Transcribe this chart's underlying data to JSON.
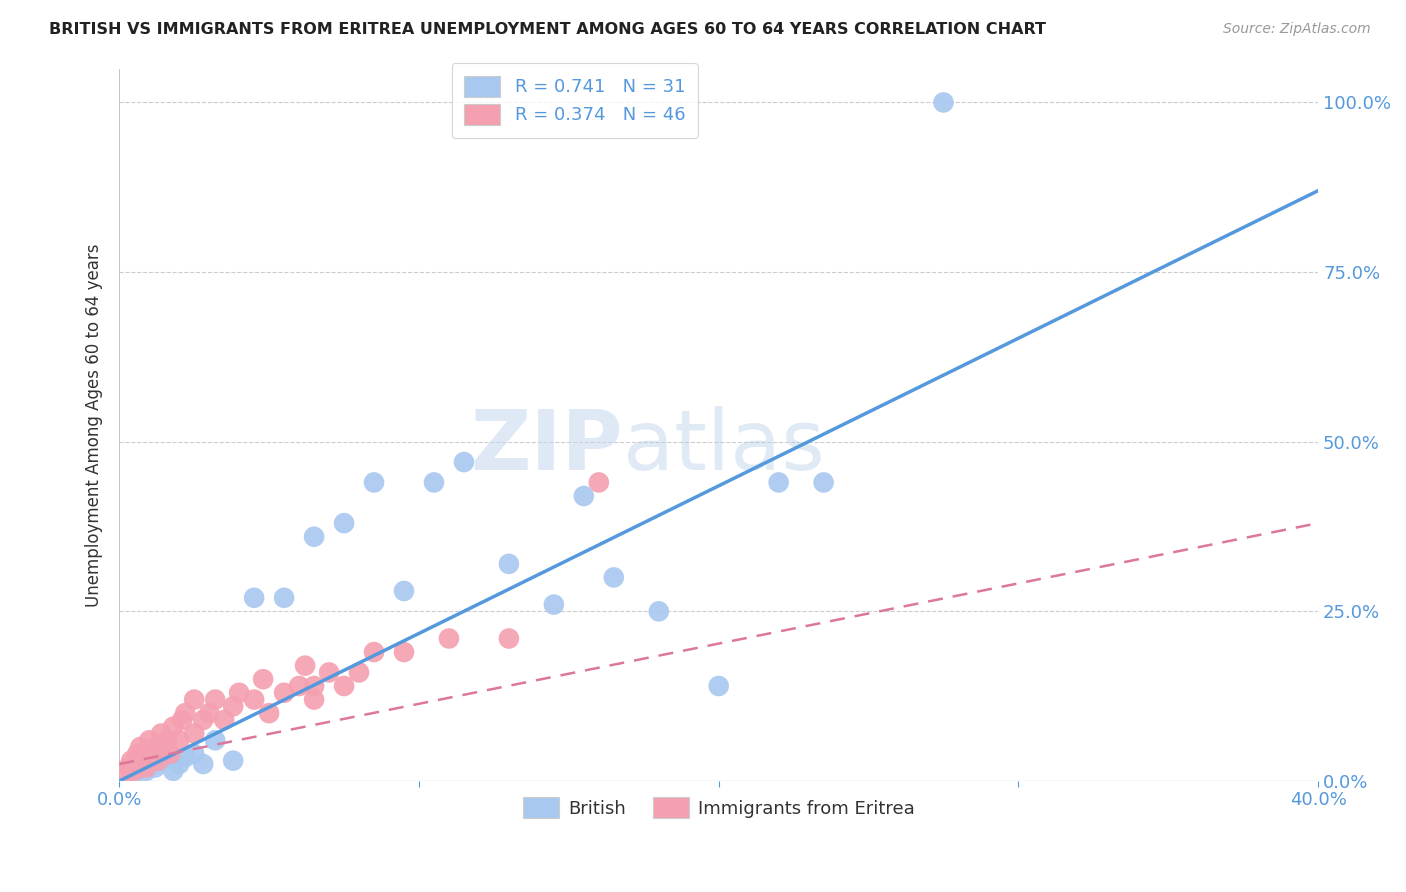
{
  "title": "BRITISH VS IMMIGRANTS FROM ERITREA UNEMPLOYMENT AMONG AGES 60 TO 64 YEARS CORRELATION CHART",
  "source": "Source: ZipAtlas.com",
  "ylabel": "Unemployment Among Ages 60 to 64 years",
  "xlim": [
    0.0,
    0.4
  ],
  "ylim": [
    0.0,
    1.05
  ],
  "x_ticks": [
    0.0,
    0.1,
    0.2,
    0.3,
    0.4
  ],
  "x_tick_labels": [
    "0.0%",
    "",
    "",
    "",
    "40.0%"
  ],
  "y_tick_labels_right": [
    "0.0%",
    "25.0%",
    "50.0%",
    "75.0%",
    "100.0%"
  ],
  "y_ticks_right": [
    0.0,
    0.25,
    0.5,
    0.75,
    1.0
  ],
  "watermark_zip": "ZIP",
  "watermark_atlas": "atlas",
  "british_color": "#a8c8f0",
  "eritrea_color": "#f4a0b0",
  "british_line_color": "#5599dd",
  "eritrea_line_color": "#dd7799",
  "title_color": "#222222",
  "axis_label_color": "#5599dd",
  "british_scatter_x": [
    0.005,
    0.007,
    0.009,
    0.01,
    0.012,
    0.014,
    0.016,
    0.018,
    0.02,
    0.022,
    0.025,
    0.028,
    0.032,
    0.038,
    0.045,
    0.055,
    0.065,
    0.075,
    0.085,
    0.095,
    0.105,
    0.115,
    0.13,
    0.145,
    0.155,
    0.165,
    0.18,
    0.2,
    0.22,
    0.235,
    0.275
  ],
  "british_scatter_y": [
    0.01,
    0.02,
    0.015,
    0.025,
    0.02,
    0.03,
    0.04,
    0.015,
    0.025,
    0.035,
    0.04,
    0.025,
    0.06,
    0.03,
    0.27,
    0.27,
    0.36,
    0.38,
    0.44,
    0.28,
    0.44,
    0.47,
    0.32,
    0.26,
    0.42,
    0.3,
    0.25,
    0.14,
    0.44,
    0.44,
    1.0
  ],
  "eritrea_scatter_x": [
    0.002,
    0.003,
    0.004,
    0.005,
    0.006,
    0.006,
    0.007,
    0.007,
    0.008,
    0.009,
    0.01,
    0.011,
    0.012,
    0.013,
    0.014,
    0.015,
    0.016,
    0.017,
    0.018,
    0.02,
    0.021,
    0.022,
    0.025,
    0.025,
    0.028,
    0.03,
    0.032,
    0.035,
    0.038,
    0.04,
    0.045,
    0.048,
    0.05,
    0.055,
    0.06,
    0.062,
    0.065,
    0.065,
    0.07,
    0.075,
    0.08,
    0.085,
    0.095,
    0.11,
    0.13,
    0.16
  ],
  "eritrea_scatter_y": [
    0.01,
    0.02,
    0.03,
    0.015,
    0.04,
    0.025,
    0.03,
    0.05,
    0.04,
    0.02,
    0.06,
    0.04,
    0.05,
    0.03,
    0.07,
    0.05,
    0.06,
    0.04,
    0.08,
    0.06,
    0.09,
    0.1,
    0.07,
    0.12,
    0.09,
    0.1,
    0.12,
    0.09,
    0.11,
    0.13,
    0.12,
    0.15,
    0.1,
    0.13,
    0.14,
    0.17,
    0.14,
    0.12,
    0.16,
    0.14,
    0.16,
    0.19,
    0.19,
    0.21,
    0.21,
    0.44
  ],
  "british_line_x": [
    0.0,
    0.4
  ],
  "british_line_y": [
    0.0,
    0.87
  ],
  "eritrea_line_x": [
    0.0,
    0.4
  ],
  "eritrea_line_y": [
    0.025,
    0.38
  ]
}
